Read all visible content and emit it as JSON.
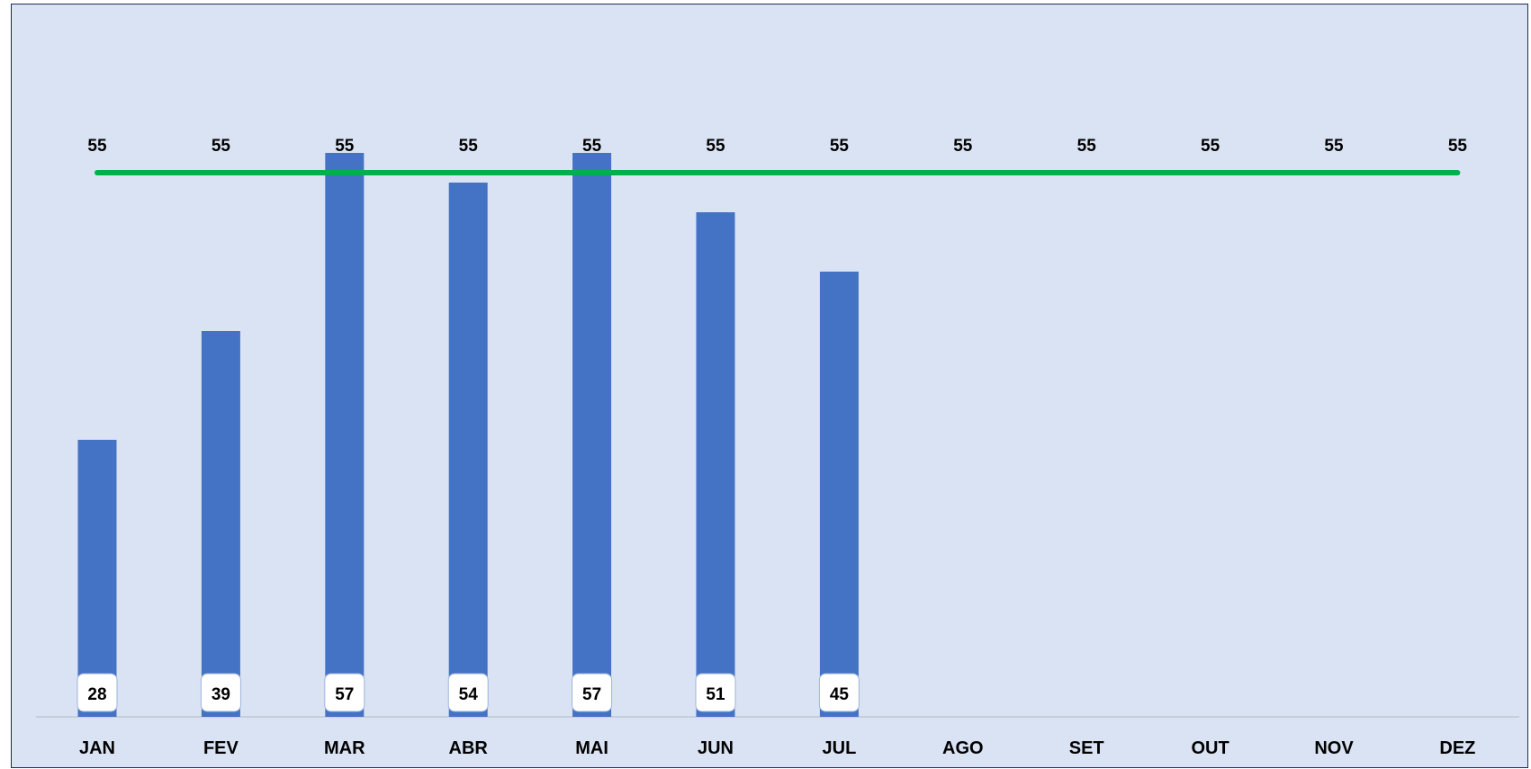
{
  "chart_data": {
    "type": "bar",
    "categories": [
      "JAN",
      "FEV",
      "MAR",
      "ABR",
      "MAI",
      "JUN",
      "JUL",
      "AGO",
      "SET",
      "OUT",
      "NOV",
      "DEZ"
    ],
    "series": [
      {
        "type": "bar",
        "values": [
          28,
          39,
          57,
          54,
          57,
          51,
          45,
          null,
          null,
          null,
          null,
          null
        ],
        "color": "#4472c4"
      },
      {
        "type": "line",
        "values": [
          55,
          55,
          55,
          55,
          55,
          55,
          55,
          55,
          55,
          55,
          55,
          55
        ],
        "color": "#00b050"
      }
    ],
    "ylim": [
      0,
      62
    ],
    "grid": false,
    "legend": "none",
    "colors": {
      "background": "#dae3f3",
      "border": "#1f2a5a",
      "axis": "#bfc7d5"
    }
  }
}
